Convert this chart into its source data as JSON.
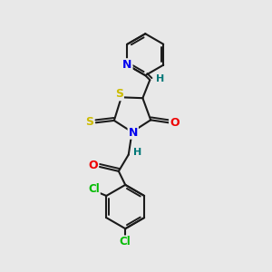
{
  "background_color": "#e8e8e8",
  "bond_color": "#1a1a1a",
  "atom_colors": {
    "N": "#0000ee",
    "O": "#ee0000",
    "S": "#ccbb00",
    "Cl": "#00bb00",
    "H": "#007777",
    "C": "#1a1a1a"
  },
  "figsize": [
    3.0,
    3.0
  ],
  "dpi": 100
}
